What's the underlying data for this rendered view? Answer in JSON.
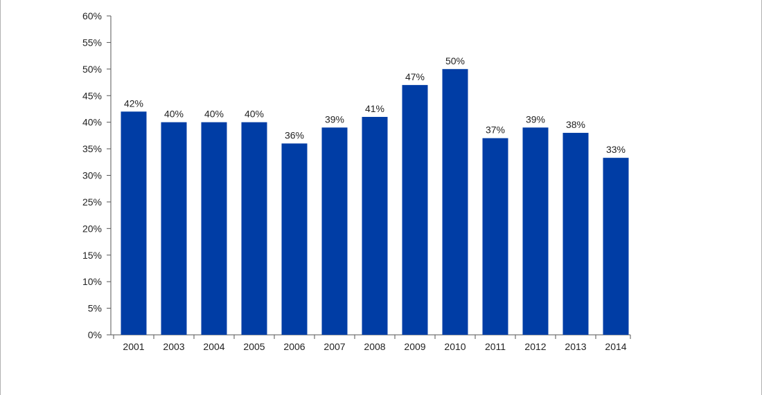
{
  "chart_data": {
    "type": "bar",
    "title": "",
    "xlabel": "",
    "ylabel": "",
    "categories": [
      "2001",
      "2003",
      "2004",
      "2005",
      "2006",
      "2007",
      "2008",
      "2009",
      "2010",
      "2011",
      "2012",
      "2013",
      "2014"
    ],
    "values": [
      42,
      40,
      40,
      40,
      36,
      39,
      41,
      47,
      50,
      37,
      39,
      38,
      33.3
    ],
    "data_labels": [
      "42%",
      "40%",
      "40%",
      "40%",
      "36%",
      "39%",
      "41%",
      "47%",
      "50%",
      "37%",
      "39%",
      "38%",
      "33%"
    ],
    "ylim": [
      0,
      60
    ],
    "y_ticks": [
      0,
      5,
      10,
      15,
      20,
      25,
      30,
      35,
      40,
      45,
      50,
      55,
      60
    ],
    "y_tick_labels": [
      "0%",
      "5%",
      "10%",
      "15%",
      "20%",
      "25%",
      "30%",
      "35%",
      "40%",
      "45%",
      "50%",
      "55%",
      "60%"
    ],
    "grid": false,
    "legend": "none",
    "bar_color": "#003DA5"
  }
}
